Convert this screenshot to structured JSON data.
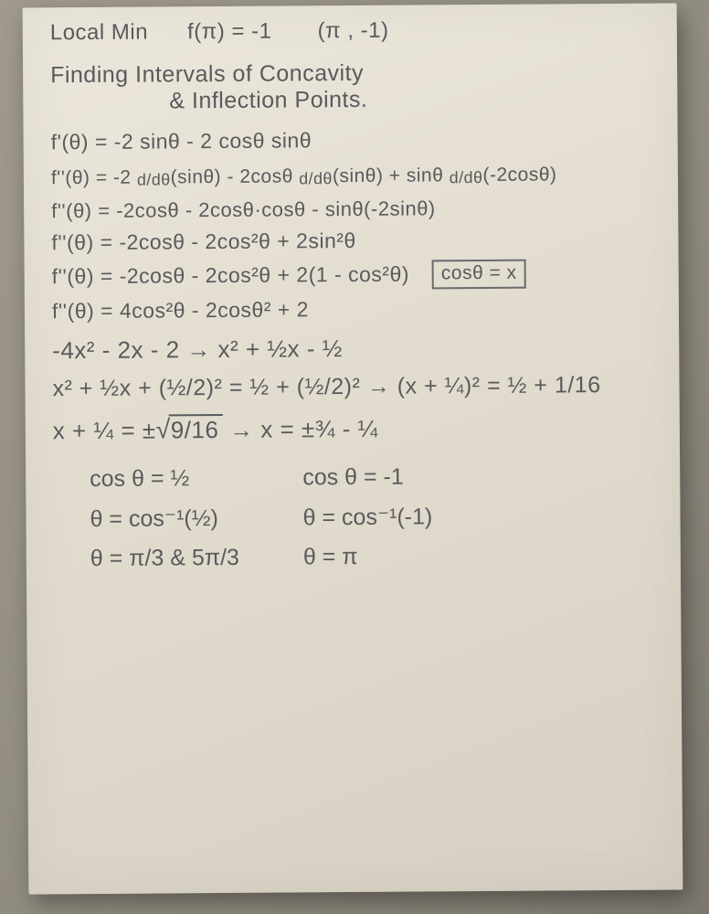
{
  "ink_color": "#595a5c",
  "paper_bg": "#e3ddd0",
  "desk_bg": "#8f8a7e",
  "line0_a": "Local  Min",
  "line0_b": "f(π) = -1",
  "line0_c": "(π , -1)",
  "title_a": "Finding  Intervals  of  Concavity",
  "title_b": "&  Inflection  Points.",
  "d1": "f'(θ) =  -2 sinθ - 2 cosθ sinθ",
  "d2_a": "f''(θ) =  -2 ",
  "d2_b": "d/dθ",
  "d2_c": "(sinθ) - 2cosθ ",
  "d2_d": "d/dθ",
  "d2_e": "(sinθ) + sinθ ",
  "d2_f": "d/dθ",
  "d2_g": "(-2cosθ)",
  "d3": "f''(θ) =  -2cosθ - 2cosθ·cosθ - sinθ(-2sinθ)",
  "d4": "f''(θ) =  -2cosθ - 2cos²θ + 2sin²θ",
  "d5": "f''(θ) =  -2cosθ - 2cos²θ + 2(1 - cos²θ)",
  "d6": "f''(θ) =   4cos²θ  - 2cosθ² + 2",
  "sub_box": "cosθ = x",
  "q1": "-4x² - 2x - 2   →   x² + ½x - ½",
  "q2": "x² + ½x + (½/2)² = ½ + (½/2)² → (x + ¼)² = ½ + 1/16",
  "q3_a": "x + ¼ = ±",
  "q3_root": "9/16",
  "q3_b": "   →   x = ±¾ - ¼",
  "colL_1": "cos θ = ½",
  "colL_2": "θ = cos⁻¹(½)",
  "colL_3": "θ = π/3  &  5π/3",
  "colR_1": "cos θ = -1",
  "colR_2": "θ = cos⁻¹(-1)",
  "colR_3": "θ = π"
}
